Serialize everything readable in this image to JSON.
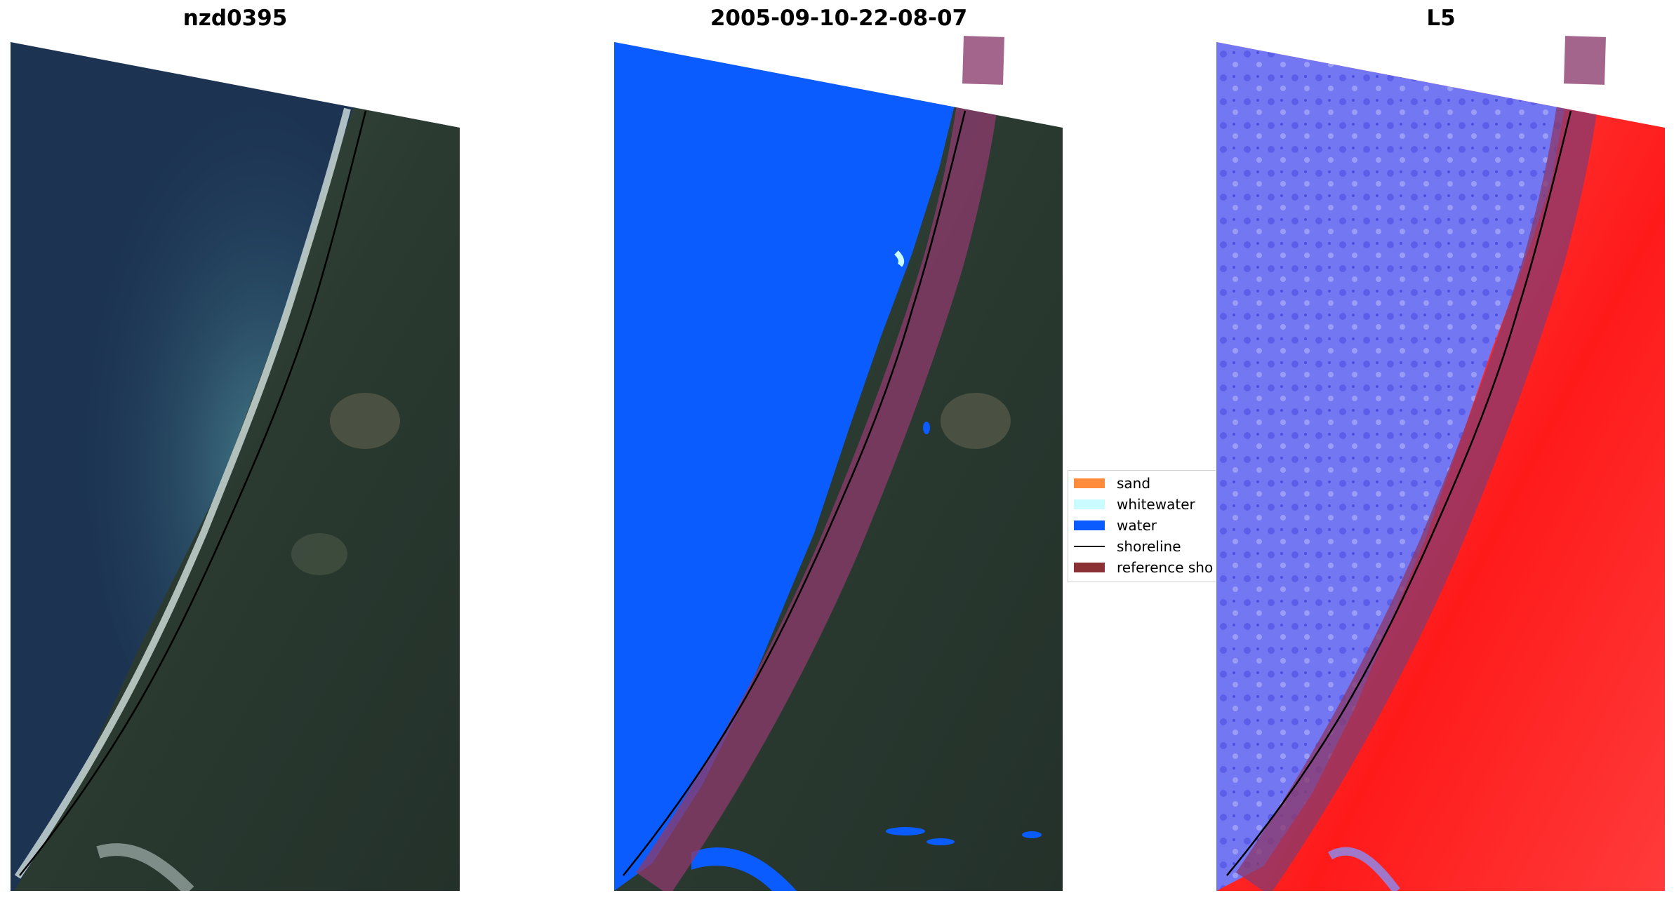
{
  "panels": [
    {
      "title": "nzd0395"
    },
    {
      "title": "2005-09-10-22-08-07"
    },
    {
      "title": "L5"
    }
  ],
  "legend": {
    "items": [
      {
        "label": "sand",
        "color": "#ff8c3c",
        "kind": "patch"
      },
      {
        "label": "whitewater",
        "color": "#c9fbff",
        "kind": "patch"
      },
      {
        "label": "water",
        "color": "#0a5cff",
        "kind": "patch"
      },
      {
        "label": "shoreline",
        "color": "#000000",
        "kind": "line"
      },
      {
        "label": "reference sho",
        "color": "#8b3135",
        "kind": "patch"
      }
    ]
  },
  "colors": {
    "ocean_dark": "#1c3452",
    "ocean_turbid": "#3c7282",
    "land": "#2c3b32",
    "water_class": "#0a5cff",
    "reference_buffer": "#8b3a6b",
    "index_water": "#6e72f0",
    "index_land": "#ff2a2a"
  }
}
